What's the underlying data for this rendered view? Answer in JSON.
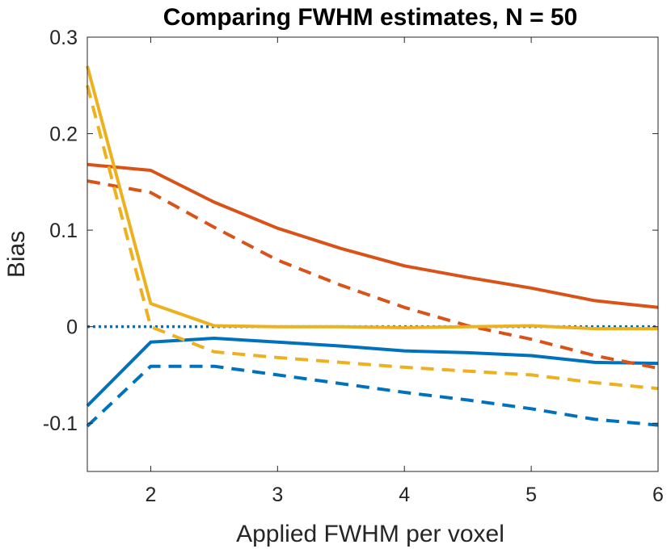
{
  "chart_data": {
    "type": "line",
    "title": "Comparing FWHM estimates, N = 50",
    "xlabel": "Applied FWHM per voxel",
    "ylabel": "Bias",
    "xlim": [
      1.5,
      6
    ],
    "ylim": [
      -0.15,
      0.3
    ],
    "xticks": [
      2,
      3,
      4,
      5,
      6
    ],
    "yticks": [
      -0.1,
      0,
      0.1,
      0.2,
      0.3
    ],
    "xtick_labels": [
      "2",
      "3",
      "4",
      "5",
      "6"
    ],
    "ytick_labels": [
      "-0.1",
      "0",
      "0.1",
      "0.2",
      "0.3"
    ],
    "grid": false,
    "x": [
      1.5,
      2,
      2.5,
      3,
      3.5,
      4,
      4.5,
      5,
      5.5,
      6
    ],
    "series": [
      {
        "color": "#0072BD",
        "style": "solid",
        "values": [
          -0.082,
          -0.016,
          -0.012,
          -0.016,
          -0.02,
          -0.025,
          -0.027,
          -0.03,
          -0.037,
          -0.038
        ]
      },
      {
        "color": "#0072BD",
        "style": "dashed",
        "values": [
          -0.103,
          -0.041,
          -0.041,
          -0.05,
          -0.059,
          -0.068,
          -0.076,
          -0.085,
          -0.096,
          -0.102
        ]
      },
      {
        "color": "#D95319",
        "style": "solid",
        "values": [
          0.168,
          0.162,
          0.129,
          0.102,
          0.081,
          0.063,
          0.051,
          0.04,
          0.027,
          0.02
        ]
      },
      {
        "color": "#D95319",
        "style": "dashed",
        "values": [
          0.151,
          0.139,
          0.103,
          0.069,
          0.043,
          0.02,
          0.001,
          -0.013,
          -0.03,
          -0.043
        ]
      },
      {
        "color": "#EDB120",
        "style": "solid",
        "values": [
          0.27,
          0.024,
          0.001,
          0.0,
          0.0,
          -0.001,
          0.0,
          0.001,
          -0.002,
          -0.002
        ]
      },
      {
        "color": "#EDB120",
        "style": "dashed",
        "values": [
          0.25,
          0.0,
          -0.026,
          -0.032,
          -0.037,
          -0.042,
          -0.046,
          -0.05,
          -0.058,
          -0.064
        ]
      }
    ],
    "reference_line": {
      "y": 0,
      "color": "#0072BD",
      "style": "dotted"
    }
  }
}
